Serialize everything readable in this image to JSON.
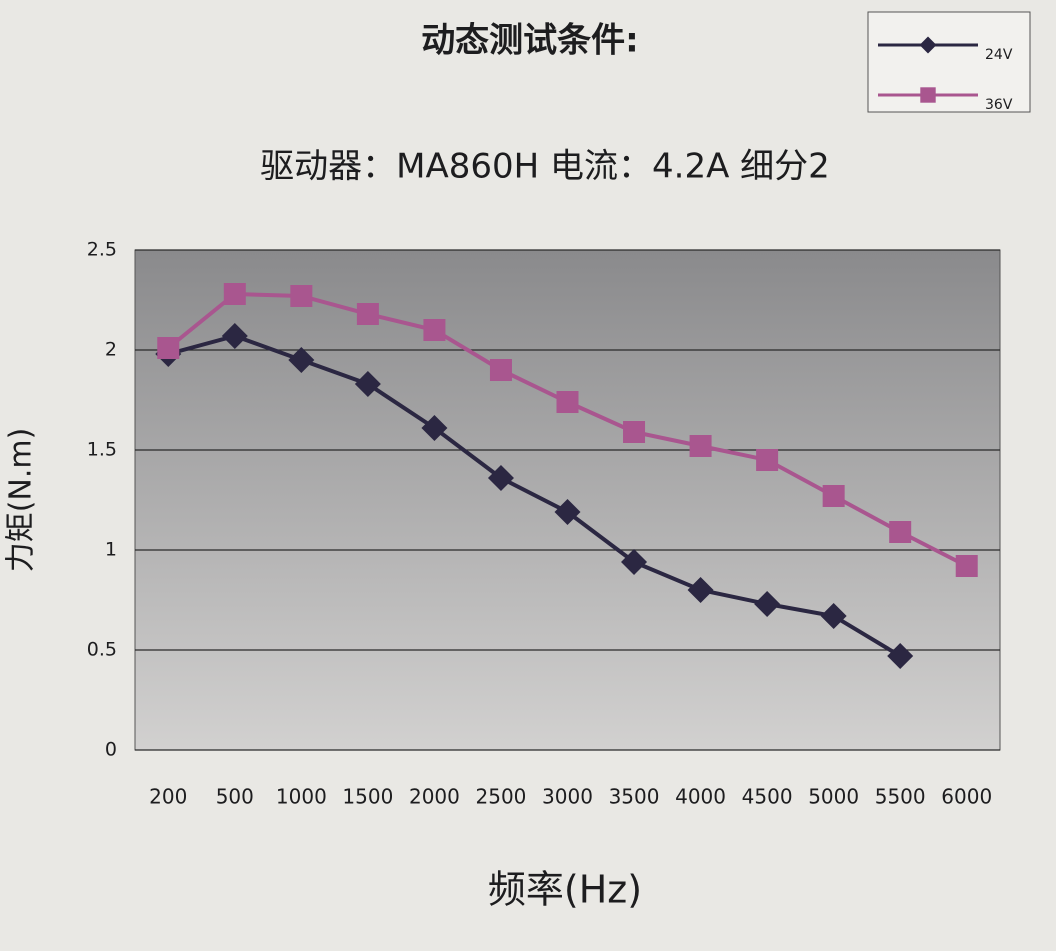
{
  "chart_data": {
    "type": "line",
    "title": "动态测试条件:",
    "subtitle": "驱动器：MA860H  电流：4.2A  细分2",
    "y_label": "力矩(N.m)",
    "x_label": "频率(Hz)",
    "categories": [
      "200",
      "500",
      "1000",
      "1500",
      "2000",
      "2500",
      "3000",
      "3500",
      "4000",
      "4500",
      "5000",
      "5500",
      "6000"
    ],
    "series": [
      {
        "name": "24V",
        "color": "#2b2742",
        "marker": "diamond",
        "values": [
          1.98,
          2.07,
          1.95,
          1.83,
          1.61,
          1.36,
          1.19,
          0.94,
          0.8,
          0.73,
          0.67,
          0.47,
          null
        ]
      },
      {
        "name": "36V",
        "color": "#a9568f",
        "marker": "square",
        "values": [
          2.01,
          2.28,
          2.27,
          2.18,
          2.1,
          1.9,
          1.74,
          1.59,
          1.52,
          1.45,
          1.27,
          1.09,
          0.92
        ]
      }
    ],
    "ylim": [
      0,
      2.5
    ],
    "yticks": [
      0,
      0.5,
      1,
      1.5,
      2,
      2.5
    ],
    "grid": true,
    "legend": "upper right"
  }
}
